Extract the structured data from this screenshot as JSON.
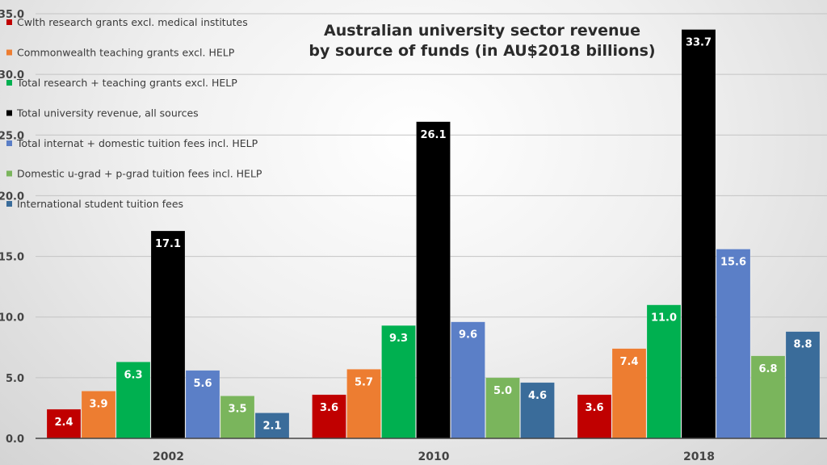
{
  "chart_data": {
    "type": "bar",
    "title": [
      "Australian university sector revenue",
      "by source of funds (in AU$2018 billions)"
    ],
    "xlabel": "",
    "ylabel": "",
    "ylim": [
      0,
      35
    ],
    "yticks": [
      "0.0",
      "5.0",
      "10.0",
      "15.0",
      "20.0",
      "25.0",
      "30.0",
      "35.0"
    ],
    "grid": true,
    "legend_position": "top-left",
    "categories": [
      "2002",
      "2010",
      "2018"
    ],
    "series": [
      {
        "name": "Cwlth research grants excl. medical institutes",
        "color": "#c00000",
        "values": [
          2.4,
          3.6,
          3.6
        ],
        "labels": [
          "2.4",
          "3.6",
          "3.6"
        ]
      },
      {
        "name": "Commonwealth teaching grants excl. HELP",
        "color": "#ed7d31",
        "values": [
          3.9,
          5.7,
          7.4
        ],
        "labels": [
          "3.9",
          "5.7",
          "7.4"
        ]
      },
      {
        "name": "Total research + teaching grants excl. HELP",
        "color": "#00b050",
        "values": [
          6.3,
          9.3,
          11.0
        ],
        "labels": [
          "6.3",
          "9.3",
          "11.0"
        ]
      },
      {
        "name": "Total university revenue, all sources",
        "color": "#000000",
        "values": [
          17.1,
          26.1,
          33.7
        ],
        "labels": [
          "17.1",
          "26.1",
          "33.7"
        ]
      },
      {
        "name": "Total internat + domestic tuition fees incl. HELP",
        "color": "#5b7fc7",
        "values": [
          5.6,
          9.6,
          15.6
        ],
        "labels": [
          "5.6",
          "9.6",
          "15.6"
        ]
      },
      {
        "name": "Domestic u-grad + p-grad tuition fees incl. HELP",
        "color": "#7ab55c",
        "values": [
          3.5,
          5.0,
          6.8
        ],
        "labels": [
          "3.5",
          "5.0",
          "6.8"
        ]
      },
      {
        "name": "International student tuition fees",
        "color": "#3a6c9a",
        "values": [
          2.1,
          4.6,
          8.8
        ],
        "labels": [
          "2.1",
          "4.6",
          "8.8"
        ]
      }
    ]
  }
}
